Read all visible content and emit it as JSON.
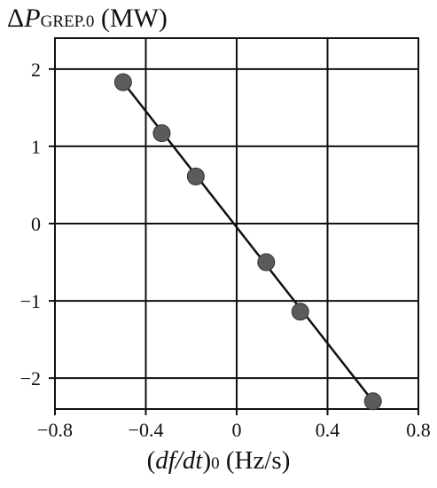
{
  "chart_data": {
    "type": "scatter",
    "ylabel": {
      "prefix": "Δ",
      "symbol": "P",
      "subscript": "GREP.0",
      "unit": " (MW)"
    },
    "xlabel": {
      "open": "(",
      "symbol": "df/dt",
      "close": ")",
      "subscript": "0",
      "unit": " (Hz/s)"
    },
    "xlim": [
      -0.8,
      0.8
    ],
    "ylim": [
      -2.4,
      2.4
    ],
    "x_ticks": [
      -0.8,
      -0.4,
      0,
      0.4,
      0.8
    ],
    "x_tick_labels": [
      "−0.8",
      "−0.4",
      "0",
      "0.4",
      "0.8"
    ],
    "y_ticks": [
      2,
      1,
      0,
      -1,
      -2
    ],
    "y_tick_labels": [
      "2",
      "1",
      "0",
      "−1",
      "−2"
    ],
    "grid": true,
    "series": [
      {
        "points": [
          {
            "x": -0.5,
            "y": 1.83
          },
          {
            "x": -0.33,
            "y": 1.17
          },
          {
            "x": -0.18,
            "y": 0.61
          },
          {
            "x": 0.13,
            "y": -0.5
          },
          {
            "x": 0.28,
            "y": -1.14
          },
          {
            "x": 0.6,
            "y": -2.3
          }
        ],
        "marker_color": "#5b5b5b"
      }
    ],
    "fit_line": {
      "x": [
        -0.5,
        0.6
      ],
      "y": [
        1.83,
        -2.3
      ],
      "color": "#111111"
    }
  }
}
